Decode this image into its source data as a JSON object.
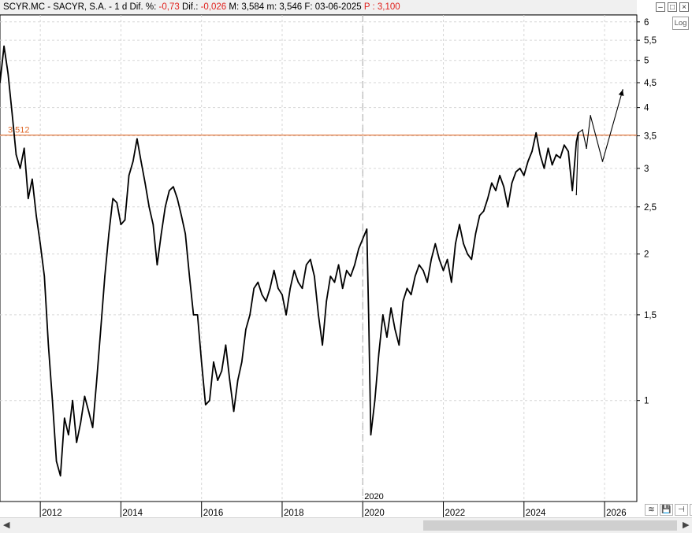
{
  "header": {
    "symbol": "SCYR.MC - SACYR, S.A. -",
    "interval": "1 d",
    "dif_pct_label": "Dif. %:",
    "dif_pct_value": "-0,73",
    "dif_label": "Dif.:",
    "dif_value": "-0,026",
    "max_label": "M:",
    "max_value": "3,584",
    "min_label": "m:",
    "min_value": "3,546",
    "date_label": "F:",
    "date_value": "03-06-2025",
    "price_label": "P :",
    "price_value": "3,100"
  },
  "log_button": "Log",
  "colors": {
    "negative": "#e0201c",
    "hline": "#e06a2a",
    "price": "#000000",
    "grid": "#d6d6d6"
  },
  "chart_data": {
    "type": "line",
    "x_axis": {
      "ticks": [
        "2012",
        "2014",
        "2016",
        "2018",
        "2020",
        "2022",
        "2024",
        "2026"
      ],
      "range": [
        "2011",
        "2026.8"
      ]
    },
    "y_axis": {
      "scale": "log",
      "ticks": [
        1,
        1.5,
        2,
        2.5,
        3,
        3.5,
        4,
        4.5,
        5,
        5.5,
        6
      ],
      "tick_labels": [
        "1",
        "1,5",
        "2",
        "2,5",
        "3",
        "3,5",
        "4",
        "4,5",
        "5",
        "5,5",
        "6"
      ],
      "range": [
        0.62,
        6.2
      ]
    },
    "grid": true,
    "series": [
      {
        "values": [
          [
            "2011.0",
            4.5
          ],
          [
            "2011.1",
            5.35
          ],
          [
            "2011.2",
            4.7
          ],
          [
            "2011.3",
            3.9
          ],
          [
            "2011.4",
            3.2
          ],
          [
            "2011.5",
            3.0
          ],
          [
            "2011.6",
            3.3
          ],
          [
            "2011.7",
            2.6
          ],
          [
            "2011.8",
            2.85
          ],
          [
            "2011.9",
            2.4
          ],
          [
            "2012.0",
            2.1
          ],
          [
            "2012.1",
            1.8
          ],
          [
            "2012.2",
            1.3
          ],
          [
            "2012.3",
            1.0
          ],
          [
            "2012.4",
            0.75
          ],
          [
            "2012.5",
            0.7
          ],
          [
            "2012.6",
            0.92
          ],
          [
            "2012.7",
            0.85
          ],
          [
            "2012.8",
            1.0
          ],
          [
            "2012.9",
            0.82
          ],
          [
            "2013.0",
            0.9
          ],
          [
            "2013.1",
            1.02
          ],
          [
            "2013.2",
            0.95
          ],
          [
            "2013.3",
            0.88
          ],
          [
            "2013.4",
            1.1
          ],
          [
            "2013.5",
            1.4
          ],
          [
            "2013.6",
            1.8
          ],
          [
            "2013.7",
            2.2
          ],
          [
            "2013.8",
            2.6
          ],
          [
            "2013.9",
            2.55
          ],
          [
            "2014.0",
            2.3
          ],
          [
            "2014.1",
            2.35
          ],
          [
            "2014.2",
            2.9
          ],
          [
            "2014.3",
            3.1
          ],
          [
            "2014.4",
            3.45
          ],
          [
            "2014.5",
            3.1
          ],
          [
            "2014.6",
            2.8
          ],
          [
            "2014.7",
            2.5
          ],
          [
            "2014.8",
            2.3
          ],
          [
            "2014.9",
            1.9
          ],
          [
            "2015.0",
            2.2
          ],
          [
            "2015.1",
            2.5
          ],
          [
            "2015.2",
            2.7
          ],
          [
            "2015.3",
            2.75
          ],
          [
            "2015.4",
            2.6
          ],
          [
            "2015.5",
            2.4
          ],
          [
            "2015.6",
            2.2
          ],
          [
            "2015.7",
            1.8
          ],
          [
            "2015.8",
            1.5
          ],
          [
            "2015.9",
            1.5
          ],
          [
            "2016.0",
            1.2
          ],
          [
            "2016.1",
            0.98
          ],
          [
            "2016.2",
            1.0
          ],
          [
            "2016.3",
            1.2
          ],
          [
            "2016.4",
            1.1
          ],
          [
            "2016.5",
            1.15
          ],
          [
            "2016.6",
            1.3
          ],
          [
            "2016.7",
            1.1
          ],
          [
            "2016.8",
            0.95
          ],
          [
            "2016.9",
            1.1
          ],
          [
            "2017.0",
            1.2
          ],
          [
            "2017.1",
            1.4
          ],
          [
            "2017.2",
            1.5
          ],
          [
            "2017.3",
            1.7
          ],
          [
            "2017.4",
            1.75
          ],
          [
            "2017.5",
            1.65
          ],
          [
            "2017.6",
            1.6
          ],
          [
            "2017.7",
            1.7
          ],
          [
            "2017.8",
            1.85
          ],
          [
            "2017.9",
            1.7
          ],
          [
            "2018.0",
            1.65
          ],
          [
            "2018.1",
            1.5
          ],
          [
            "2018.2",
            1.7
          ],
          [
            "2018.3",
            1.85
          ],
          [
            "2018.4",
            1.75
          ],
          [
            "2018.5",
            1.7
          ],
          [
            "2018.6",
            1.9
          ],
          [
            "2018.7",
            1.95
          ],
          [
            "2018.8",
            1.8
          ],
          [
            "2018.9",
            1.5
          ],
          [
            "2019.0",
            1.3
          ],
          [
            "2019.1",
            1.6
          ],
          [
            "2019.2",
            1.8
          ],
          [
            "2019.3",
            1.75
          ],
          [
            "2019.4",
            1.9
          ],
          [
            "2019.5",
            1.7
          ],
          [
            "2019.6",
            1.85
          ],
          [
            "2019.7",
            1.8
          ],
          [
            "2019.8",
            1.9
          ],
          [
            "2019.9",
            2.05
          ],
          [
            "2020.0",
            2.15
          ],
          [
            "2020.1",
            2.25
          ],
          [
            "2020.15",
            1.45
          ],
          [
            "2020.2",
            0.85
          ],
          [
            "2020.3",
            1.0
          ],
          [
            "2020.4",
            1.25
          ],
          [
            "2020.5",
            1.5
          ],
          [
            "2020.6",
            1.35
          ],
          [
            "2020.7",
            1.55
          ],
          [
            "2020.8",
            1.4
          ],
          [
            "2020.9",
            1.3
          ],
          [
            "2021.0",
            1.6
          ],
          [
            "2021.1",
            1.7
          ],
          [
            "2021.2",
            1.65
          ],
          [
            "2021.3",
            1.8
          ],
          [
            "2021.4",
            1.9
          ],
          [
            "2021.5",
            1.85
          ],
          [
            "2021.6",
            1.75
          ],
          [
            "2021.7",
            1.95
          ],
          [
            "2021.8",
            2.1
          ],
          [
            "2021.9",
            1.95
          ],
          [
            "2022.0",
            1.85
          ],
          [
            "2022.1",
            1.95
          ],
          [
            "2022.2",
            1.75
          ],
          [
            "2022.3",
            2.1
          ],
          [
            "2022.4",
            2.3
          ],
          [
            "2022.5",
            2.1
          ],
          [
            "2022.6",
            2.0
          ],
          [
            "2022.7",
            1.95
          ],
          [
            "2022.8",
            2.2
          ],
          [
            "2022.9",
            2.4
          ],
          [
            "2023.0",
            2.45
          ],
          [
            "2023.1",
            2.6
          ],
          [
            "2023.2",
            2.8
          ],
          [
            "2023.3",
            2.7
          ],
          [
            "2023.4",
            2.9
          ],
          [
            "2023.5",
            2.75
          ],
          [
            "2023.6",
            2.5
          ],
          [
            "2023.7",
            2.8
          ],
          [
            "2023.8",
            2.95
          ],
          [
            "2023.9",
            3.0
          ],
          [
            "2024.0",
            2.9
          ],
          [
            "2024.1",
            3.1
          ],
          [
            "2024.2",
            3.25
          ],
          [
            "2024.3",
            3.55
          ],
          [
            "2024.4",
            3.2
          ],
          [
            "2024.5",
            3.0
          ],
          [
            "2024.6",
            3.3
          ],
          [
            "2024.7",
            3.05
          ],
          [
            "2024.8",
            3.2
          ],
          [
            "2024.9",
            3.15
          ],
          [
            "2025.0",
            3.35
          ],
          [
            "2025.1",
            3.25
          ],
          [
            "2025.2",
            2.7
          ],
          [
            "2025.3",
            3.4
          ],
          [
            "2025.35",
            3.55
          ]
        ]
      },
      {
        "values": [
          [
            "2025.3",
            2.65
          ],
          [
            "2025.35",
            3.55
          ],
          [
            "2025.45",
            3.6
          ],
          [
            "2025.55",
            3.3
          ],
          [
            "2025.65",
            3.85
          ],
          [
            "2025.95",
            3.1
          ],
          [
            "2026.45",
            4.35
          ]
        ]
      }
    ],
    "reference_lines": [
      {
        "orientation": "horizontal",
        "value": 3.512,
        "label": "3,512"
      },
      {
        "orientation": "vertical",
        "value": "2020.0",
        "label": "2020"
      }
    ]
  }
}
